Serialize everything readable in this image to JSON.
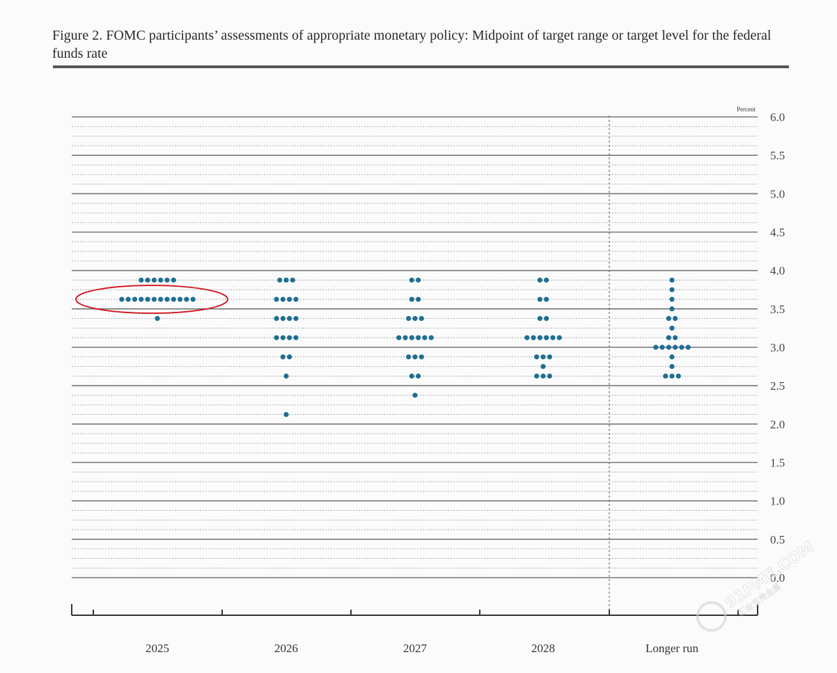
{
  "figure": {
    "title": "Figure 2. FOMC participants’ assessments of appropriate monetary policy: Midpoint of target range or target level for the federal funds rate"
  },
  "chart_data": {
    "type": "scatter",
    "subtype": "dot-plot",
    "title": "Figure 2. FOMC participants’ assessments of appropriate monetary policy: Midpoint of target range or target level for the federal funds rate",
    "unit_label": "Percent",
    "xlabel": "",
    "ylabel": "",
    "ylim": [
      0,
      6
    ],
    "y_ticks": [
      "6.0",
      "5.5",
      "5.0",
      "4.5",
      "4.0",
      "3.5",
      "3.0",
      "2.5",
      "2.0",
      "1.5",
      "1.0",
      "0.5",
      "0.0"
    ],
    "grid": true,
    "categories": [
      "2025",
      "2026",
      "2027",
      "2028",
      "Longer run"
    ],
    "series": [
      {
        "values": [
          {
            "category": "2025",
            "y": 3.875,
            "count": 6
          },
          {
            "category": "2025",
            "y": 3.625,
            "count": 12
          },
          {
            "category": "2025",
            "y": 3.375,
            "count": 1
          },
          {
            "category": "2026",
            "y": 3.875,
            "count": 3
          },
          {
            "category": "2026",
            "y": 3.625,
            "count": 4
          },
          {
            "category": "2026",
            "y": 3.375,
            "count": 4
          },
          {
            "category": "2026",
            "y": 3.125,
            "count": 4
          },
          {
            "category": "2026",
            "y": 2.875,
            "count": 2
          },
          {
            "category": "2026",
            "y": 2.625,
            "count": 1
          },
          {
            "category": "2026",
            "y": 2.125,
            "count": 1
          },
          {
            "category": "2027",
            "y": 3.875,
            "count": 2
          },
          {
            "category": "2027",
            "y": 3.625,
            "count": 2
          },
          {
            "category": "2027",
            "y": 3.375,
            "count": 3
          },
          {
            "category": "2027",
            "y": 3.125,
            "count": 6
          },
          {
            "category": "2027",
            "y": 2.875,
            "count": 3
          },
          {
            "category": "2027",
            "y": 2.625,
            "count": 2
          },
          {
            "category": "2027",
            "y": 2.375,
            "count": 1
          },
          {
            "category": "2028",
            "y": 3.875,
            "count": 2
          },
          {
            "category": "2028",
            "y": 3.625,
            "count": 2
          },
          {
            "category": "2028",
            "y": 3.375,
            "count": 2
          },
          {
            "category": "2028",
            "y": 3.125,
            "count": 6
          },
          {
            "category": "2028",
            "y": 2.875,
            "count": 3
          },
          {
            "category": "2028",
            "y": 2.75,
            "count": 1
          },
          {
            "category": "2028",
            "y": 2.625,
            "count": 3
          },
          {
            "category": "Longer run",
            "y": 3.875,
            "count": 1
          },
          {
            "category": "Longer run",
            "y": 3.75,
            "count": 1
          },
          {
            "category": "Longer run",
            "y": 3.625,
            "count": 1
          },
          {
            "category": "Longer run",
            "y": 3.5,
            "count": 1
          },
          {
            "category": "Longer run",
            "y": 3.375,
            "count": 2
          },
          {
            "category": "Longer run",
            "y": 3.25,
            "count": 1
          },
          {
            "category": "Longer run",
            "y": 3.125,
            "count": 2
          },
          {
            "category": "Longer run",
            "y": 3.0,
            "count": 6
          },
          {
            "category": "Longer run",
            "y": 2.875,
            "count": 1
          },
          {
            "category": "Longer run",
            "y": 2.75,
            "count": 1
          },
          {
            "category": "Longer run",
            "y": 2.625,
            "count": 3
          }
        ]
      }
    ],
    "annotation": {
      "shape": "ellipse",
      "color": "#d0141c",
      "highlight": {
        "category": "2025",
        "y": 3.625
      }
    },
    "colors": {
      "dot": "#1f6e93",
      "grid_major": "#777777",
      "grid_minor": "#aaaaaa",
      "axis": "#333333",
      "separator": "#555555"
    }
  },
  "watermark": {
    "text": "91PME.COM",
    "subtext": "汇金宝贵金属"
  }
}
